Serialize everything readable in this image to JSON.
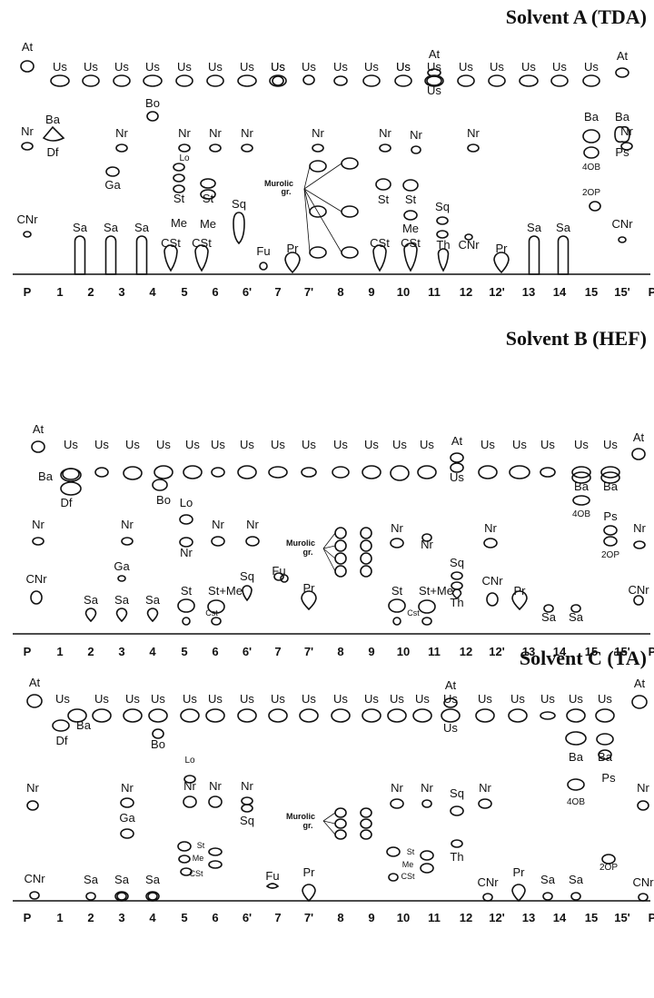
{
  "panels": [
    {
      "title": "Solvent A (TDA)"
    },
    {
      "title": "Solvent B (HEF)"
    },
    {
      "title": "Solvent C (TA)"
    }
  ],
  "lanes": [
    "P",
    "1",
    "2",
    "3",
    "4",
    "5",
    "6",
    "6'",
    "7",
    "7'",
    "8",
    "9",
    "10",
    "11",
    "12",
    "12'",
    "13",
    "14",
    "15",
    "15'",
    "P"
  ],
  "group_label": [
    "Murolic",
    "gr."
  ]
}
